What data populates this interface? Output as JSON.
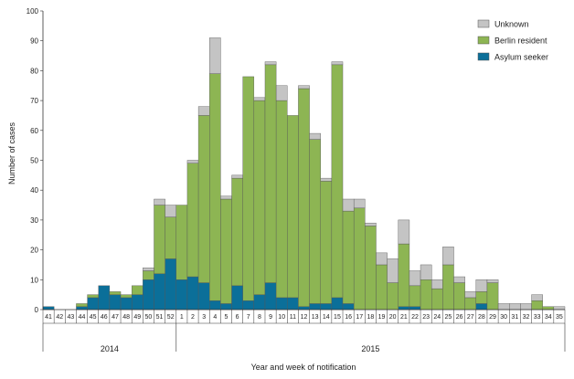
{
  "chart_data": {
    "type": "bar",
    "stacked": true,
    "xlabel": "Year and week of notification",
    "ylabel": "Number of cases",
    "ylim": [
      0,
      100
    ],
    "yticks": [
      0,
      10,
      20,
      30,
      40,
      50,
      60,
      70,
      80,
      90,
      100
    ],
    "grid": false,
    "legend_position": "top-right",
    "categories": [
      "41",
      "42",
      "43",
      "44",
      "45",
      "46",
      "47",
      "48",
      "49",
      "50",
      "51",
      "52",
      "1",
      "2",
      "3",
      "4",
      "5",
      "6",
      "7",
      "8",
      "9",
      "10",
      "11",
      "12",
      "13",
      "14",
      "15",
      "16",
      "17",
      "18",
      "19",
      "20",
      "21",
      "22",
      "23",
      "24",
      "25",
      "26",
      "27",
      "28",
      "29",
      "30",
      "31",
      "32",
      "33",
      "34",
      "35"
    ],
    "year_groups": [
      {
        "label": "2014",
        "from": "41",
        "to": "52"
      },
      {
        "label": "2015",
        "from": "1",
        "to": "35"
      }
    ],
    "series": [
      {
        "name": "Asylum seeker",
        "color": "#0b6f99",
        "values": [
          1,
          0,
          0,
          1,
          4,
          8,
          5,
          4,
          5,
          10,
          12,
          17,
          10,
          11,
          9,
          3,
          2,
          8,
          3,
          5,
          9,
          4,
          4,
          1,
          2,
          2,
          4,
          2,
          0,
          0,
          0,
          0,
          1,
          1,
          0,
          0,
          0,
          0,
          0,
          2,
          0,
          0,
          0,
          0,
          0,
          0,
          0
        ]
      },
      {
        "name": "Berlin resident",
        "color": "#8db553",
        "values": [
          0,
          0,
          0,
          1,
          1,
          0,
          1,
          1,
          3,
          3,
          23,
          14,
          25,
          38,
          56,
          76,
          35,
          36,
          75,
          65,
          73,
          66,
          61,
          73,
          55,
          41,
          78,
          31,
          34,
          28,
          15,
          9,
          21,
          7,
          10,
          7,
          15,
          9,
          4,
          4,
          9,
          0,
          0,
          0,
          3,
          1,
          0
        ]
      },
      {
        "name": "Unknown",
        "color": "#c4c4c4",
        "values": [
          0,
          0,
          0,
          0,
          0,
          0,
          0,
          0,
          0,
          1,
          2,
          4,
          0,
          1,
          3,
          12,
          1,
          1,
          0,
          1,
          1,
          5,
          0,
          1,
          2,
          1,
          1,
          4,
          3,
          1,
          4,
          8,
          8,
          5,
          5,
          3,
          6,
          2,
          2,
          4,
          1,
          2,
          2,
          2,
          2,
          0,
          1
        ]
      }
    ]
  }
}
